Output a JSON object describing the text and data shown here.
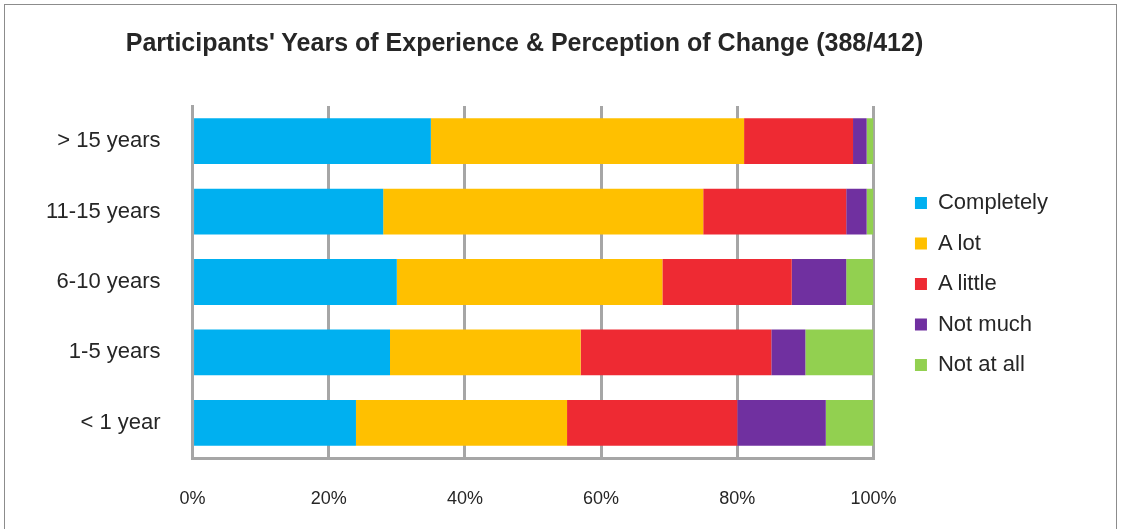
{
  "chart_data": {
    "type": "bar",
    "title": "Participants' Years of Experience & Perception of Change (388/412)",
    "categories": [
      "> 15 years",
      "11-15 years",
      "6-10 years",
      "1-5 years",
      "< 1 year"
    ],
    "orientation": "horizontal",
    "stacked": true,
    "series": [
      {
        "name": "Completely",
        "color": "#00b0f0",
        "values": [
          35,
          28,
          30,
          29,
          24
        ]
      },
      {
        "name": "A lot",
        "color": "#ffc000",
        "values": [
          46,
          47,
          39,
          28,
          31
        ]
      },
      {
        "name": "A little",
        "color": "#ee2a33",
        "values": [
          16,
          21,
          19,
          28,
          25
        ]
      },
      {
        "name": "Not much",
        "color": "#7030a0",
        "values": [
          2,
          3,
          8,
          5,
          13
        ]
      },
      {
        "name": "Not at all",
        "color": "#92d050",
        "values": [
          1,
          1,
          4,
          10,
          7
        ]
      }
    ],
    "xlim": [
      0,
      100
    ],
    "xticks": [
      {
        "value": 0,
        "label": "0%"
      },
      {
        "value": 20,
        "label": "20%"
      },
      {
        "value": 40,
        "label": "40%"
      },
      {
        "value": 60,
        "label": "60%"
      },
      {
        "value": 80,
        "label": "80%"
      },
      {
        "value": 100,
        "label": "100%"
      }
    ],
    "grid": "x",
    "legend": "right"
  }
}
